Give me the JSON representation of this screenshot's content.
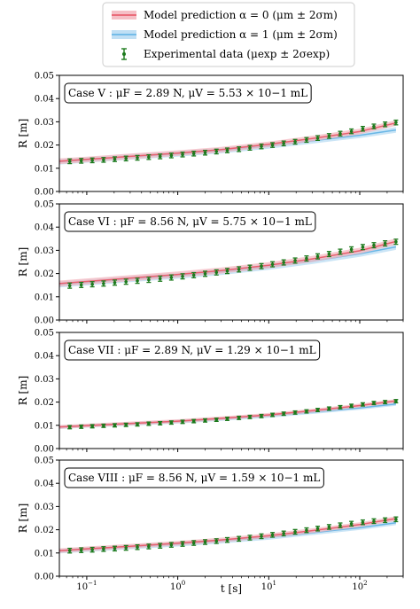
{
  "legend": {
    "items": [
      {
        "label": "Model prediction α = 0 (μm ± 2σm)",
        "color": "#e8606f",
        "band": "#f4b8c0",
        "kind": "band"
      },
      {
        "label": "Model prediction α = 1 (μm ± 2σm)",
        "color": "#6ab7e6",
        "band": "#b9dcf3",
        "kind": "band"
      },
      {
        "label": "Experimental data (μexp ± 2σexp)",
        "color": "#1c7a1c",
        "kind": "errorbar"
      }
    ]
  },
  "colors": {
    "alpha0_line": "#e8606f",
    "alpha0_band": "#f4b8c0",
    "alpha1_line": "#6ab7e6",
    "alpha1_band": "#b9dcf3",
    "experiment": "#1c7a1c"
  },
  "chart_data": [
    {
      "type": "line",
      "annotation": "Case V :  μF = 2.89 N,  μV = 5.53 × 10−1 mL",
      "xlabel": "",
      "ylabel": "R [m]",
      "xscale": "log",
      "xlim": [
        0.05,
        300
      ],
      "ylim": [
        0.0,
        0.05
      ],
      "yticks": [
        "0.00",
        "0.01",
        "0.02",
        "0.03",
        "0.04",
        "0.05"
      ],
      "xticks": [],
      "series": [
        {
          "x": [
            0.05,
            0.1,
            0.3,
            1,
            3,
            10,
            30,
            100,
            250
          ],
          "y": [
            0.013,
            0.0138,
            0.0151,
            0.0165,
            0.018,
            0.0203,
            0.0228,
            0.0258,
            0.0295
          ],
          "band": 0.0012
        },
        {
          "x": [
            0.05,
            0.1,
            0.3,
            1,
            3,
            10,
            30,
            100,
            250
          ],
          "y": [
            0.0128,
            0.0136,
            0.0149,
            0.0162,
            0.0176,
            0.0196,
            0.0218,
            0.0242,
            0.0265
          ],
          "band": 0.0012
        },
        {
          "x": [
            0.065,
            0.087,
            0.115,
            0.153,
            0.203,
            0.27,
            0.36,
            0.48,
            0.64,
            0.85,
            1.13,
            1.5,
            2.0,
            2.66,
            3.5,
            4.7,
            6.2,
            8.3,
            11,
            14.6,
            19.5,
            26,
            34.5,
            46,
            61,
            81,
            108,
            143,
            190,
            250
          ],
          "y": [
            0.013,
            0.0132,
            0.0134,
            0.0136,
            0.0139,
            0.0142,
            0.0145,
            0.0148,
            0.0151,
            0.0155,
            0.0159,
            0.0163,
            0.0167,
            0.0172,
            0.0177,
            0.0182,
            0.0188,
            0.0194,
            0.02,
            0.0207,
            0.0214,
            0.0222,
            0.023,
            0.0239,
            0.0249,
            0.0259,
            0.027,
            0.028,
            0.0289,
            0.0297
          ],
          "err": 0.001
        }
      ]
    },
    {
      "type": "line",
      "annotation": "Case VI :  μF = 8.56 N,  μV = 5.75 × 10−1 mL",
      "xlabel": "",
      "ylabel": "R [m]",
      "xscale": "log",
      "xlim": [
        0.05,
        300
      ],
      "ylim": [
        0.0,
        0.05
      ],
      "yticks": [
        "0.00",
        "0.01",
        "0.02",
        "0.03",
        "0.04",
        "0.05"
      ],
      "xticks": [],
      "series": [
        {
          "x": [
            0.05,
            0.1,
            0.3,
            1,
            3,
            10,
            30,
            100,
            250
          ],
          "y": [
            0.0157,
            0.0166,
            0.018,
            0.0196,
            0.0213,
            0.0236,
            0.0263,
            0.0298,
            0.0338
          ],
          "band": 0.0013
        },
        {
          "x": [
            0.05,
            0.1,
            0.3,
            1,
            3,
            10,
            30,
            100,
            250
          ],
          "y": [
            0.0153,
            0.0162,
            0.0176,
            0.0191,
            0.0207,
            0.0229,
            0.0254,
            0.0285,
            0.0315
          ],
          "band": 0.0013
        },
        {
          "x": [
            0.065,
            0.087,
            0.115,
            0.153,
            0.203,
            0.27,
            0.36,
            0.48,
            0.64,
            0.85,
            1.13,
            1.5,
            2.0,
            2.66,
            3.5,
            4.7,
            6.2,
            8.3,
            11,
            14.6,
            19.5,
            26,
            34.5,
            46,
            61,
            81,
            108,
            143,
            190,
            250
          ],
          "y": [
            0.0148,
            0.0151,
            0.0154,
            0.0157,
            0.0161,
            0.0165,
            0.0169,
            0.0173,
            0.0178,
            0.0183,
            0.0188,
            0.0193,
            0.0199,
            0.0205,
            0.0211,
            0.0218,
            0.0225,
            0.0232,
            0.024,
            0.0248,
            0.0256,
            0.0265,
            0.0274,
            0.0284,
            0.0294,
            0.0304,
            0.0314,
            0.0322,
            0.033,
            0.0337
          ],
          "err": 0.0011
        }
      ]
    },
    {
      "type": "line",
      "annotation": "Case VII :  μF = 2.89 N,  μV = 1.29 × 10−1 mL",
      "xlabel": "",
      "ylabel": "R [m]",
      "xscale": "log",
      "xlim": [
        0.05,
        300
      ],
      "ylim": [
        0.0,
        0.05
      ],
      "yticks": [
        "0.00",
        "0.01",
        "0.02",
        "0.03",
        "0.04",
        "0.05"
      ],
      "xticks": [],
      "series": [
        {
          "x": [
            0.05,
            0.1,
            0.3,
            1,
            3,
            10,
            30,
            100,
            250
          ],
          "y": [
            0.0093,
            0.0099,
            0.0108,
            0.0118,
            0.013,
            0.0145,
            0.0163,
            0.0185,
            0.0205
          ],
          "band": 0.0008
        },
        {
          "x": [
            0.05,
            0.1,
            0.3,
            1,
            3,
            10,
            30,
            100,
            250
          ],
          "y": [
            0.0092,
            0.0098,
            0.0106,
            0.0116,
            0.0127,
            0.0141,
            0.0157,
            0.0175,
            0.0192
          ],
          "band": 0.0008
        },
        {
          "x": [
            0.065,
            0.087,
            0.115,
            0.153,
            0.203,
            0.27,
            0.36,
            0.48,
            0.64,
            0.85,
            1.13,
            1.5,
            2.0,
            2.66,
            3.5,
            4.7,
            6.2,
            8.3,
            11,
            14.6,
            19.5,
            26,
            34.5,
            46,
            61,
            81,
            108,
            143,
            190,
            250
          ],
          "y": [
            0.0092,
            0.0094,
            0.0096,
            0.0098,
            0.01,
            0.0102,
            0.0104,
            0.0107,
            0.0109,
            0.0112,
            0.0115,
            0.0118,
            0.0121,
            0.0124,
            0.0128,
            0.0132,
            0.0136,
            0.014,
            0.0145,
            0.015,
            0.0155,
            0.016,
            0.0166,
            0.0172,
            0.0178,
            0.0184,
            0.019,
            0.0196,
            0.02,
            0.0204
          ],
          "err": 0.0007
        }
      ]
    },
    {
      "type": "line",
      "annotation": "Case VIII :  μF = 8.56 N,  μV = 1.59 × 10−1 mL",
      "xlabel": "t [s]",
      "ylabel": "R [m]",
      "xscale": "log",
      "xlim": [
        0.05,
        300
      ],
      "ylim": [
        0.0,
        0.05
      ],
      "yticks": [
        "0.00",
        "0.01",
        "0.02",
        "0.03",
        "0.04",
        "0.05"
      ],
      "xticks": [
        "10−1",
        "100",
        "101",
        "102"
      ],
      "series": [
        {
          "x": [
            0.05,
            0.1,
            0.3,
            1,
            3,
            10,
            30,
            100,
            250
          ],
          "y": [
            0.011,
            0.0118,
            0.0129,
            0.0142,
            0.0156,
            0.0174,
            0.0196,
            0.0222,
            0.0248
          ],
          "band": 0.001
        },
        {
          "x": [
            0.05,
            0.1,
            0.3,
            1,
            3,
            10,
            30,
            100,
            250
          ],
          "y": [
            0.0108,
            0.0115,
            0.0126,
            0.0138,
            0.0151,
            0.0167,
            0.0187,
            0.0209,
            0.023
          ],
          "band": 0.001
        },
        {
          "x": [
            0.065,
            0.087,
            0.115,
            0.153,
            0.203,
            0.27,
            0.36,
            0.48,
            0.64,
            0.85,
            1.13,
            1.5,
            2.0,
            2.66,
            3.5,
            4.7,
            6.2,
            8.3,
            11,
            14.6,
            19.5,
            26,
            34.5,
            46,
            61,
            81,
            108,
            143,
            190,
            250
          ],
          "y": [
            0.011,
            0.0112,
            0.0114,
            0.0117,
            0.0119,
            0.0122,
            0.0125,
            0.0128,
            0.0131,
            0.0135,
            0.0139,
            0.0143,
            0.0147,
            0.0151,
            0.0156,
            0.0161,
            0.0166,
            0.0172,
            0.0178,
            0.0184,
            0.0191,
            0.0198,
            0.0205,
            0.0212,
            0.0219,
            0.0226,
            0.0232,
            0.0237,
            0.0241,
            0.0245
          ],
          "err": 0.001
        }
      ]
    }
  ]
}
